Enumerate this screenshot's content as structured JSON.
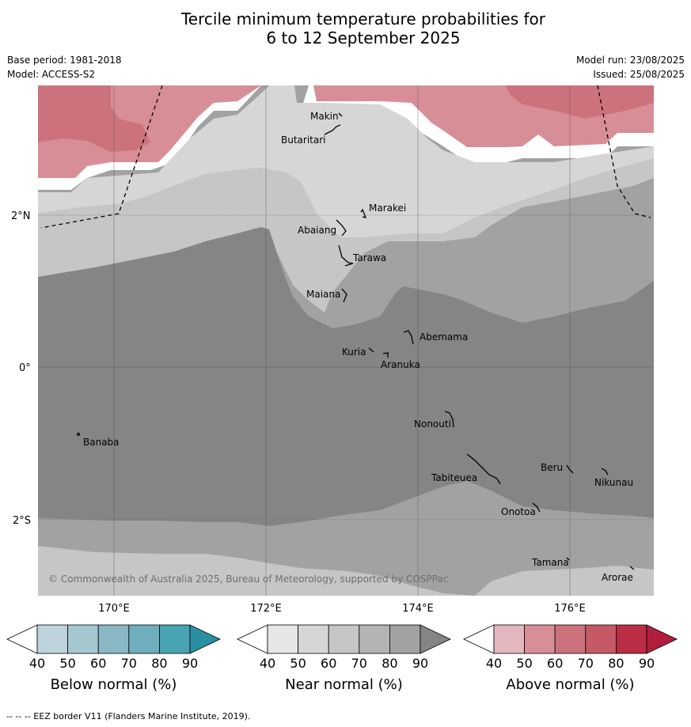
{
  "title_line1": "Tercile minimum temperature probabilities for",
  "title_line2": "6 to 12 September 2025",
  "base_period": "Base period: 1981-2018",
  "model": "Model: ACCESS-S2",
  "model_run": "Model run: 23/08/2025",
  "issued": "Issued: 25/08/2025",
  "copyright": "© Commonwealth of Australia 2025, Bureau of Meteorology, supported by COSPPac",
  "footer": "--  --  -- EEZ border V11 (Flanders Marine Institute, 2019).",
  "lat_labels": [
    "2°N",
    "0°",
    "2°S"
  ],
  "lon_labels": [
    "170°E",
    "172°E",
    "174°E",
    "176°E"
  ],
  "places": [
    "Makin",
    "Butaritari",
    "Marakei",
    "Abaiang",
    "Tarawa",
    "Maiana",
    "Abemama",
    "Kuria",
    "Aranuka",
    "Nonouti",
    "Banaba",
    "Beru",
    "Tabiteuea",
    "Nikunau",
    "Onotoa",
    "Tamana",
    "Arorae"
  ],
  "colorbars": [
    {
      "title": "Below normal (%)",
      "ticks": [
        "40",
        "50",
        "60",
        "70",
        "80",
        "90"
      ],
      "colors": [
        "#ffffff",
        "#bed3db",
        "#a5c8d0",
        "#8ab9c5",
        "#6fafbd",
        "#48a3b3",
        "#2a8fa3"
      ]
    },
    {
      "title": "Near normal (%)",
      "ticks": [
        "40",
        "50",
        "60",
        "70",
        "80",
        "90"
      ],
      "colors": [
        "#ffffff",
        "#e6e6e6",
        "#d6d6d6",
        "#c6c6c6",
        "#b4b4b4",
        "#a2a2a2",
        "#858585"
      ]
    },
    {
      "title": "Above normal (%)",
      "ticks": [
        "40",
        "50",
        "60",
        "70",
        "80",
        "90"
      ],
      "colors": [
        "#ffffff",
        "#e2b7bd",
        "#d88e97",
        "#cc727c",
        "#c55965",
        "#b92e45",
        "#b01e3c"
      ]
    }
  ]
}
